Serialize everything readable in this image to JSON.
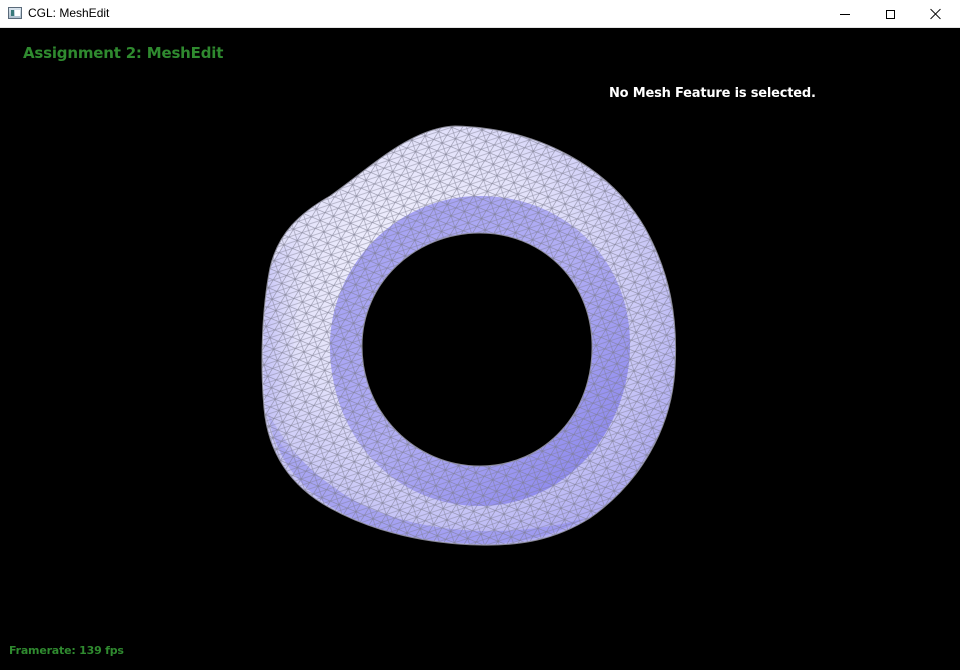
{
  "window": {
    "title": "CGL: MeshEdit"
  },
  "hud": {
    "title": "Assignment 2: MeshEdit",
    "status": "No Mesh Feature is selected.",
    "framerate": "Framerate: 139 fps"
  },
  "colors": {
    "hud_green": "#2f8a2f",
    "mesh_light": "#ecebfb",
    "mesh_mid": "#c4c2f6",
    "mesh_dark": "#8a86ee",
    "wireframe": "#7d7d90",
    "background": "#000000"
  },
  "icons": {
    "app": "app-icon",
    "minimize": "minimize-icon",
    "maximize": "maximize-icon",
    "close": "close-icon"
  }
}
